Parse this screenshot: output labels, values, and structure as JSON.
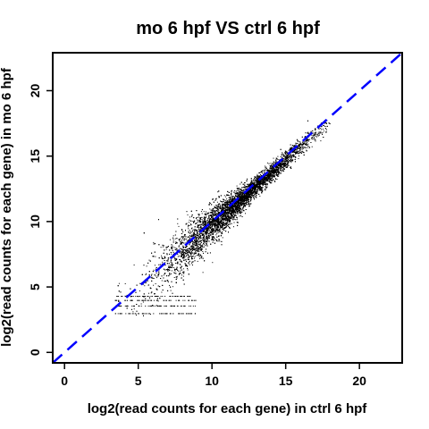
{
  "chart_data": {
    "type": "scatter",
    "title": "mo 6 hpf VS ctrl 6 hpf",
    "xlabel": "log2(read counts for each gene) in ctrl 6 hpf",
    "ylabel": "log2(read counts for each gene) in mo 6 hpf",
    "xlim": [
      -0.8,
      22.9
    ],
    "ylim": [
      -0.8,
      22.9
    ],
    "xticks": [
      0,
      5,
      10,
      15,
      20
    ],
    "yticks": [
      0,
      5,
      10,
      15,
      20
    ],
    "x_tick_labels": [
      "0",
      "5",
      "10",
      "15",
      "20"
    ],
    "y_tick_labels": [
      "0",
      "5",
      "10",
      "15",
      "20"
    ],
    "grid": false,
    "reference_line": {
      "slope": 1,
      "intercept": 0,
      "style": "dashed",
      "color": "#0000ff"
    },
    "point_color": "#000000",
    "series": [
      {
        "points_summary": "dense cloud of genes along the diagonal, approx. x from 3 to 18, y from 2.5 to 17.5",
        "x": [
          3.6,
          4.2,
          4.8,
          5.1,
          5.5,
          5.9,
          6.2,
          6.6,
          7.0,
          7.4,
          7.8,
          8.2,
          8.6,
          9.0,
          9.4,
          9.8,
          10.2,
          10.6,
          11.0,
          11.4,
          11.8,
          12.2,
          12.6,
          13.0,
          13.4,
          13.8,
          14.2,
          14.6,
          15.0,
          15.4,
          15.8,
          16.2,
          16.6,
          17.0,
          17.5
        ],
        "y": [
          3.7,
          4.4,
          4.6,
          5.3,
          5.4,
          6.0,
          6.1,
          6.8,
          7.1,
          7.5,
          7.7,
          8.4,
          8.5,
          9.2,
          9.3,
          9.9,
          10.1,
          10.7,
          10.9,
          11.5,
          11.8,
          12.3,
          12.5,
          13.1,
          13.3,
          13.9,
          14.1,
          14.6,
          14.9,
          15.3,
          15.7,
          16.1,
          16.3,
          16.8,
          17.1
        ]
      }
    ]
  }
}
